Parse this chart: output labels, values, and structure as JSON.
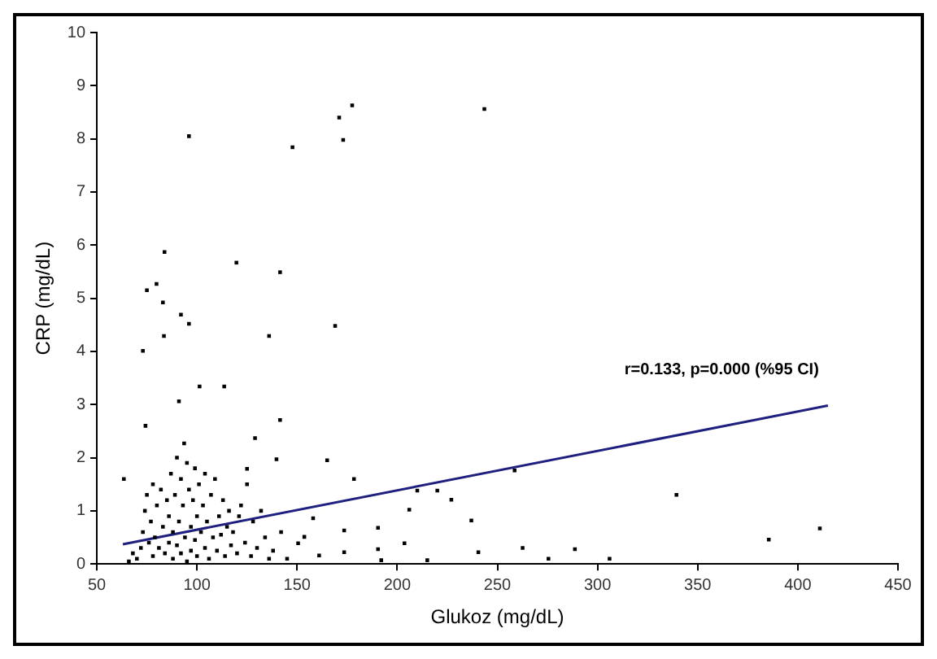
{
  "chart_data": {
    "type": "scatter",
    "xlabel": "Glukoz (mg/dL)",
    "ylabel": "CRP (mg/dL)",
    "xlim": [
      50,
      450
    ],
    "xticks": [
      50,
      100,
      150,
      200,
      250,
      300,
      350,
      400,
      450
    ],
    "ylim": [
      0,
      10
    ],
    "yticks": [
      0,
      1,
      2,
      3,
      4,
      5,
      6,
      7,
      8,
      9,
      10
    ],
    "grid": false,
    "legend": false,
    "marker": "square",
    "annotations": [
      "r=0.133, p=0.000 (%95 CI)"
    ],
    "series": [
      {
        "color": "#000000",
        "x": [
          96,
          147.7,
          171,
          177.5,
          173,
          243.5,
          83.8,
          119.7,
          141.5,
          75,
          79.8,
          83,
          92,
          96,
          83.5,
          73,
          169,
          136,
          101.3,
          113.6,
          91,
          141.5,
          74.3,
          93.6,
          129,
          139.7,
          165,
          63.5,
          125,
          178.4,
          258.6,
          210,
          220,
          227,
          339.4,
          206,
          237,
          385.5,
          411,
          240.5,
          262.6,
          288.7,
          306,
          275.5,
          203.6,
          190.4,
          190.4,
          173.5,
          173.5,
          158,
          150.5,
          153.6,
          161,
          192,
          215,
          66,
          68,
          70,
          72,
          73,
          74,
          75,
          76,
          77,
          78,
          78,
          79,
          80,
          81,
          82,
          83,
          84,
          85,
          86,
          86,
          87,
          88,
          88,
          89,
          90,
          90,
          91,
          92,
          92,
          93,
          94,
          95,
          95,
          96,
          97,
          97,
          98,
          99,
          99,
          100,
          100,
          101,
          102,
          103,
          104,
          104,
          105,
          106,
          107,
          108,
          109,
          110,
          111,
          112,
          113,
          114,
          115,
          116,
          117,
          118,
          120,
          121,
          122,
          124,
          125,
          127,
          128,
          130,
          132,
          134,
          136,
          138,
          142,
          145
        ],
        "values": [
          8.05,
          7.84,
          8.4,
          8.63,
          7.98,
          8.56,
          5.87,
          5.67,
          5.49,
          5.15,
          5.27,
          4.92,
          4.69,
          4.52,
          4.29,
          4.01,
          4.48,
          4.29,
          3.34,
          3.34,
          3.06,
          2.71,
          2.6,
          2.27,
          2.37,
          1.97,
          1.95,
          1.6,
          1.79,
          1.6,
          1.76,
          1.38,
          1.38,
          1.21,
          1.3,
          1.02,
          0.82,
          0.46,
          0.67,
          0.22,
          0.3,
          0.28,
          0.1,
          0.1,
          0.39,
          0.68,
          0.28,
          0.63,
          0.22,
          0.86,
          0.39,
          0.51,
          0.16,
          0.07,
          0.07,
          0.05,
          0.2,
          0.1,
          0.3,
          0.6,
          1.0,
          1.3,
          0.4,
          0.8,
          1.5,
          0.15,
          0.5,
          1.1,
          0.3,
          1.4,
          0.7,
          0.2,
          1.2,
          0.9,
          0.4,
          1.7,
          0.1,
          0.6,
          1.3,
          2.0,
          0.35,
          0.8,
          1.6,
          0.2,
          1.1,
          0.5,
          1.9,
          0.05,
          1.4,
          0.7,
          0.25,
          1.2,
          0.45,
          1.8,
          0.9,
          0.15,
          1.5,
          0.6,
          1.1,
          0.3,
          1.7,
          0.8,
          0.1,
          1.3,
          0.5,
          1.6,
          0.25,
          0.9,
          0.55,
          1.2,
          0.15,
          0.7,
          1.0,
          0.35,
          0.6,
          0.2,
          0.9,
          1.1,
          0.4,
          1.5,
          0.15,
          0.8,
          0.3,
          1.0,
          0.5,
          0.1,
          0.25,
          0.6,
          0.1
        ]
      },
      {
        "type": "line",
        "color": "#1f1f80",
        "line_style": "solid",
        "marker": "none",
        "x": [
          63,
          415
        ],
        "values": [
          0.37,
          2.98
        ]
      }
    ]
  }
}
